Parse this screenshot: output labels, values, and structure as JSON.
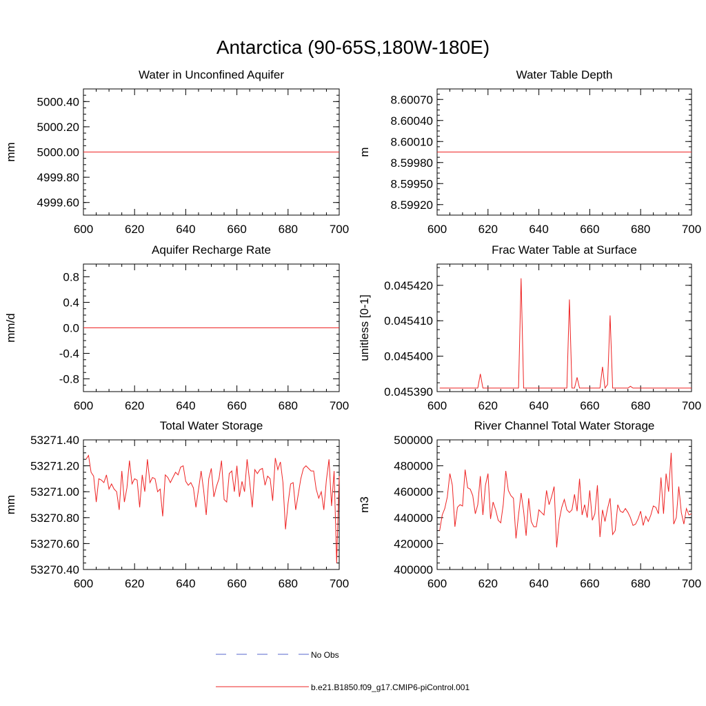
{
  "figure": {
    "title": "Antarctica (90-65S,180W-180E)"
  },
  "legend": {
    "placement": "bottom-center",
    "entries": [
      {
        "label": "No Obs",
        "color": "#5566cc",
        "style": "dashed"
      },
      {
        "label": "b.e21.B1850.f09_g17.CMIP6-piControl.001",
        "color": "#ee2222",
        "style": "solid"
      }
    ]
  },
  "chart_data": [
    {
      "type": "line",
      "title": "Water in Unconfined Aquifer",
      "ylabel": "mm",
      "xlim": [
        600,
        700
      ],
      "ylim": [
        4999.5,
        5000.5
      ],
      "xticks": [
        600,
        620,
        640,
        660,
        680,
        700
      ],
      "xtick_labels": [
        "600",
        "620",
        "640",
        "660",
        "680",
        "700"
      ],
      "yticks": [
        4999.6,
        4999.8,
        5000.0,
        5000.2,
        5000.4
      ],
      "ytick_labels": [
        "4999.60",
        "4999.80",
        "5000.00",
        "5000.20",
        "5000.40"
      ],
      "series": [
        {
          "x": [
            600,
            700
          ],
          "values": [
            5000.0,
            5000.0
          ]
        }
      ]
    },
    {
      "type": "line",
      "title": "Water Table Depth",
      "ylabel": "m",
      "xlim": [
        600,
        700
      ],
      "ylim": [
        8.59905,
        8.60085
      ],
      "xticks": [
        600,
        620,
        640,
        660,
        680,
        700
      ],
      "xtick_labels": [
        "600",
        "620",
        "640",
        "660",
        "680",
        "700"
      ],
      "yticks": [
        8.5992,
        8.5995,
        8.5998,
        8.6001,
        8.6004,
        8.6007
      ],
      "ytick_labels": [
        "8.59920",
        "8.59950",
        "8.59980",
        "8.60010",
        "8.60040",
        "8.60070"
      ],
      "series": [
        {
          "x": [
            600,
            700
          ],
          "values": [
            8.59995,
            8.59995
          ]
        }
      ]
    },
    {
      "type": "line",
      "title": "Aquifer Recharge Rate",
      "ylabel": "mm/d",
      "xlim": [
        600,
        700
      ],
      "ylim": [
        -1.0,
        1.0
      ],
      "xticks": [
        600,
        620,
        640,
        660,
        680,
        700
      ],
      "xtick_labels": [
        "600",
        "620",
        "640",
        "660",
        "680",
        "700"
      ],
      "yticks": [
        -0.8,
        -0.4,
        0.0,
        0.4,
        0.8
      ],
      "ytick_labels": [
        "-0.8",
        "-0.4",
        "0.0",
        "0.4",
        "0.8"
      ],
      "series": [
        {
          "x": [
            600,
            700
          ],
          "values": [
            0.0,
            0.0
          ]
        }
      ]
    },
    {
      "type": "line",
      "title": "Frac Water Table at Surface",
      "ylabel": "unitless [0-1]",
      "xlim": [
        600,
        700
      ],
      "ylim": [
        0.04539,
        0.045426
      ],
      "xticks": [
        600,
        620,
        640,
        660,
        680,
        700
      ],
      "xtick_labels": [
        "600",
        "620",
        "640",
        "660",
        "680",
        "700"
      ],
      "yticks": [
        0.04539,
        0.0454,
        0.04541,
        0.04542
      ],
      "ytick_labels": [
        "0.045390",
        "0.045400",
        "0.045410",
        "0.045420"
      ],
      "series": [
        {
          "x": [
            601,
            616,
            617,
            618,
            632,
            633,
            634,
            635,
            651,
            652,
            653,
            654,
            655,
            656,
            664,
            665,
            666,
            667,
            668,
            669,
            675,
            676,
            677,
            700
          ],
          "values": [
            0.045391,
            0.045391,
            0.045395,
            0.045391,
            0.045391,
            0.045422,
            0.045391,
            0.045391,
            0.045391,
            0.045416,
            0.045391,
            0.045391,
            0.045394,
            0.045391,
            0.045391,
            0.045397,
            0.045391,
            0.045392,
            0.0454115,
            0.045391,
            0.045391,
            0.0453915,
            0.045391,
            0.045391
          ]
        }
      ]
    },
    {
      "type": "line",
      "title": "Total Water Storage",
      "ylabel": "mm",
      "xlim": [
        600,
        700
      ],
      "ylim": [
        53270.4,
        53271.4
      ],
      "xticks": [
        600,
        620,
        640,
        660,
        680,
        700
      ],
      "xtick_labels": [
        "600",
        "620",
        "640",
        "660",
        "680",
        "700"
      ],
      "yticks": [
        53270.4,
        53270.6,
        53270.8,
        53271.0,
        53271.2,
        53271.4
      ],
      "ytick_labels": [
        "53270.40",
        "53270.60",
        "53270.80",
        "53271.00",
        "53271.20",
        "53271.40"
      ],
      "series": [
        {
          "x": [
            601,
            602,
            603,
            604,
            605,
            606,
            607,
            608,
            609,
            610,
            611,
            612,
            613,
            614,
            615,
            616,
            617,
            618,
            619,
            620,
            621,
            622,
            623,
            624,
            625,
            626,
            627,
            628,
            629,
            630,
            631,
            632,
            633,
            634,
            635,
            636,
            637,
            638,
            639,
            640,
            641,
            642,
            643,
            644,
            645,
            646,
            647,
            648,
            649,
            650,
            651,
            652,
            653,
            654,
            655,
            656,
            657,
            658,
            659,
            660,
            661,
            662,
            663,
            664,
            665,
            666,
            667,
            668,
            669,
            670,
            671,
            672,
            673,
            674,
            675,
            676,
            677,
            678,
            679,
            680,
            681,
            682,
            683,
            684,
            685,
            686,
            687,
            688,
            689,
            690,
            691,
            692,
            693,
            694,
            695,
            696,
            697,
            698,
            699,
            700
          ],
          "values": [
            53271.25,
            53271.28,
            53271.15,
            53271.12,
            53270.92,
            53271.1,
            53271.09,
            53271.07,
            53271.13,
            53271.02,
            53271.06,
            53271.02,
            53271.0,
            53270.86,
            53271.16,
            53270.92,
            53271.03,
            53271.24,
            53271.06,
            53271.1,
            53271.09,
            53270.88,
            53271.13,
            53271.0,
            53271.25,
            53271.07,
            53271.11,
            53271.1,
            53271.0,
            53271.02,
            53270.81,
            53271.13,
            53271.11,
            53271.07,
            53271.11,
            53271.15,
            53271.13,
            53271.19,
            53271.2,
            53271.08,
            53271.05,
            53271.07,
            53271.03,
            53270.88,
            53271.02,
            53271.16,
            53271.01,
            53270.82,
            53271.1,
            53271.18,
            53270.96,
            53271.04,
            53271.1,
            53271.24,
            53270.94,
            53270.92,
            53271.14,
            53271.16,
            53271.0,
            53271.2,
            53270.96,
            53271.08,
            53271.0,
            53271.25,
            53271.08,
            53270.88,
            53271.17,
            53271.14,
            53271.17,
            53271.18,
            53271.05,
            53271.12,
            53271.1,
            53270.93,
            53271.26,
            53271.17,
            53271.23,
            53271.07,
            53270.71,
            53270.91,
            53271.06,
            53271.07,
            53270.86,
            53270.98,
            53271.1,
            53271.18,
            53271.2,
            53271.18,
            53271.16,
            53271.16,
            53271.02,
            53270.95,
            53271.0,
            53270.86,
            53271.09,
            53271.25,
            53270.89,
            53271.16,
            53270.45,
            53271.12
          ]
        }
      ]
    },
    {
      "type": "line",
      "title": "River Channel Total Water Storage",
      "ylabel": "m3",
      "xlim": [
        600,
        700
      ],
      "ylim": [
        400000,
        500000
      ],
      "xticks": [
        600,
        620,
        640,
        660,
        680,
        700
      ],
      "xtick_labels": [
        "600",
        "620",
        "640",
        "660",
        "680",
        "700"
      ],
      "yticks": [
        400000,
        420000,
        440000,
        460000,
        480000,
        500000
      ],
      "ytick_labels": [
        "400000",
        "420000",
        "440000",
        "460000",
        "480000",
        "500000"
      ],
      "series": [
        {
          "x": [
            601,
            602,
            603,
            604,
            605,
            606,
            607,
            608,
            609,
            610,
            611,
            612,
            613,
            614,
            615,
            616,
            617,
            618,
            619,
            620,
            621,
            622,
            623,
            624,
            625,
            626,
            627,
            628,
            629,
            630,
            631,
            632,
            633,
            634,
            635,
            636,
            637,
            638,
            639,
            640,
            641,
            642,
            643,
            644,
            645,
            646,
            647,
            648,
            649,
            650,
            651,
            652,
            653,
            654,
            655,
            656,
            657,
            658,
            659,
            660,
            661,
            662,
            663,
            664,
            665,
            666,
            667,
            668,
            669,
            670,
            671,
            672,
            673,
            674,
            675,
            676,
            677,
            678,
            679,
            680,
            681,
            682,
            683,
            684,
            685,
            686,
            687,
            688,
            689,
            690,
            691,
            692,
            693,
            694,
            695,
            696,
            697,
            698,
            699,
            700
          ],
          "values": [
            430000,
            442000,
            447000,
            456000,
            474000,
            465000,
            433000,
            448000,
            450000,
            449000,
            477000,
            463000,
            462000,
            457000,
            443000,
            450000,
            472000,
            442000,
            465000,
            474000,
            439000,
            452000,
            446000,
            438000,
            436000,
            450000,
            476000,
            461000,
            457000,
            455000,
            424000,
            442000,
            459000,
            445000,
            426000,
            455000,
            437000,
            433000,
            433000,
            446000,
            444000,
            442000,
            461000,
            450000,
            456000,
            464000,
            417000,
            438000,
            448000,
            454000,
            446000,
            444000,
            446000,
            458000,
            445000,
            470000,
            442000,
            450000,
            440000,
            461000,
            438000,
            443000,
            465000,
            425000,
            446000,
            437000,
            447000,
            455000,
            427000,
            430000,
            450000,
            445000,
            444000,
            447000,
            444000,
            440000,
            434000,
            435000,
            439000,
            445000,
            434000,
            441000,
            437000,
            442000,
            449000,
            448000,
            443000,
            471000,
            443000,
            474000,
            460000,
            490000,
            435000,
            440000,
            464000,
            444000,
            435000,
            447000,
            442000,
            443000
          ]
        }
      ]
    }
  ]
}
